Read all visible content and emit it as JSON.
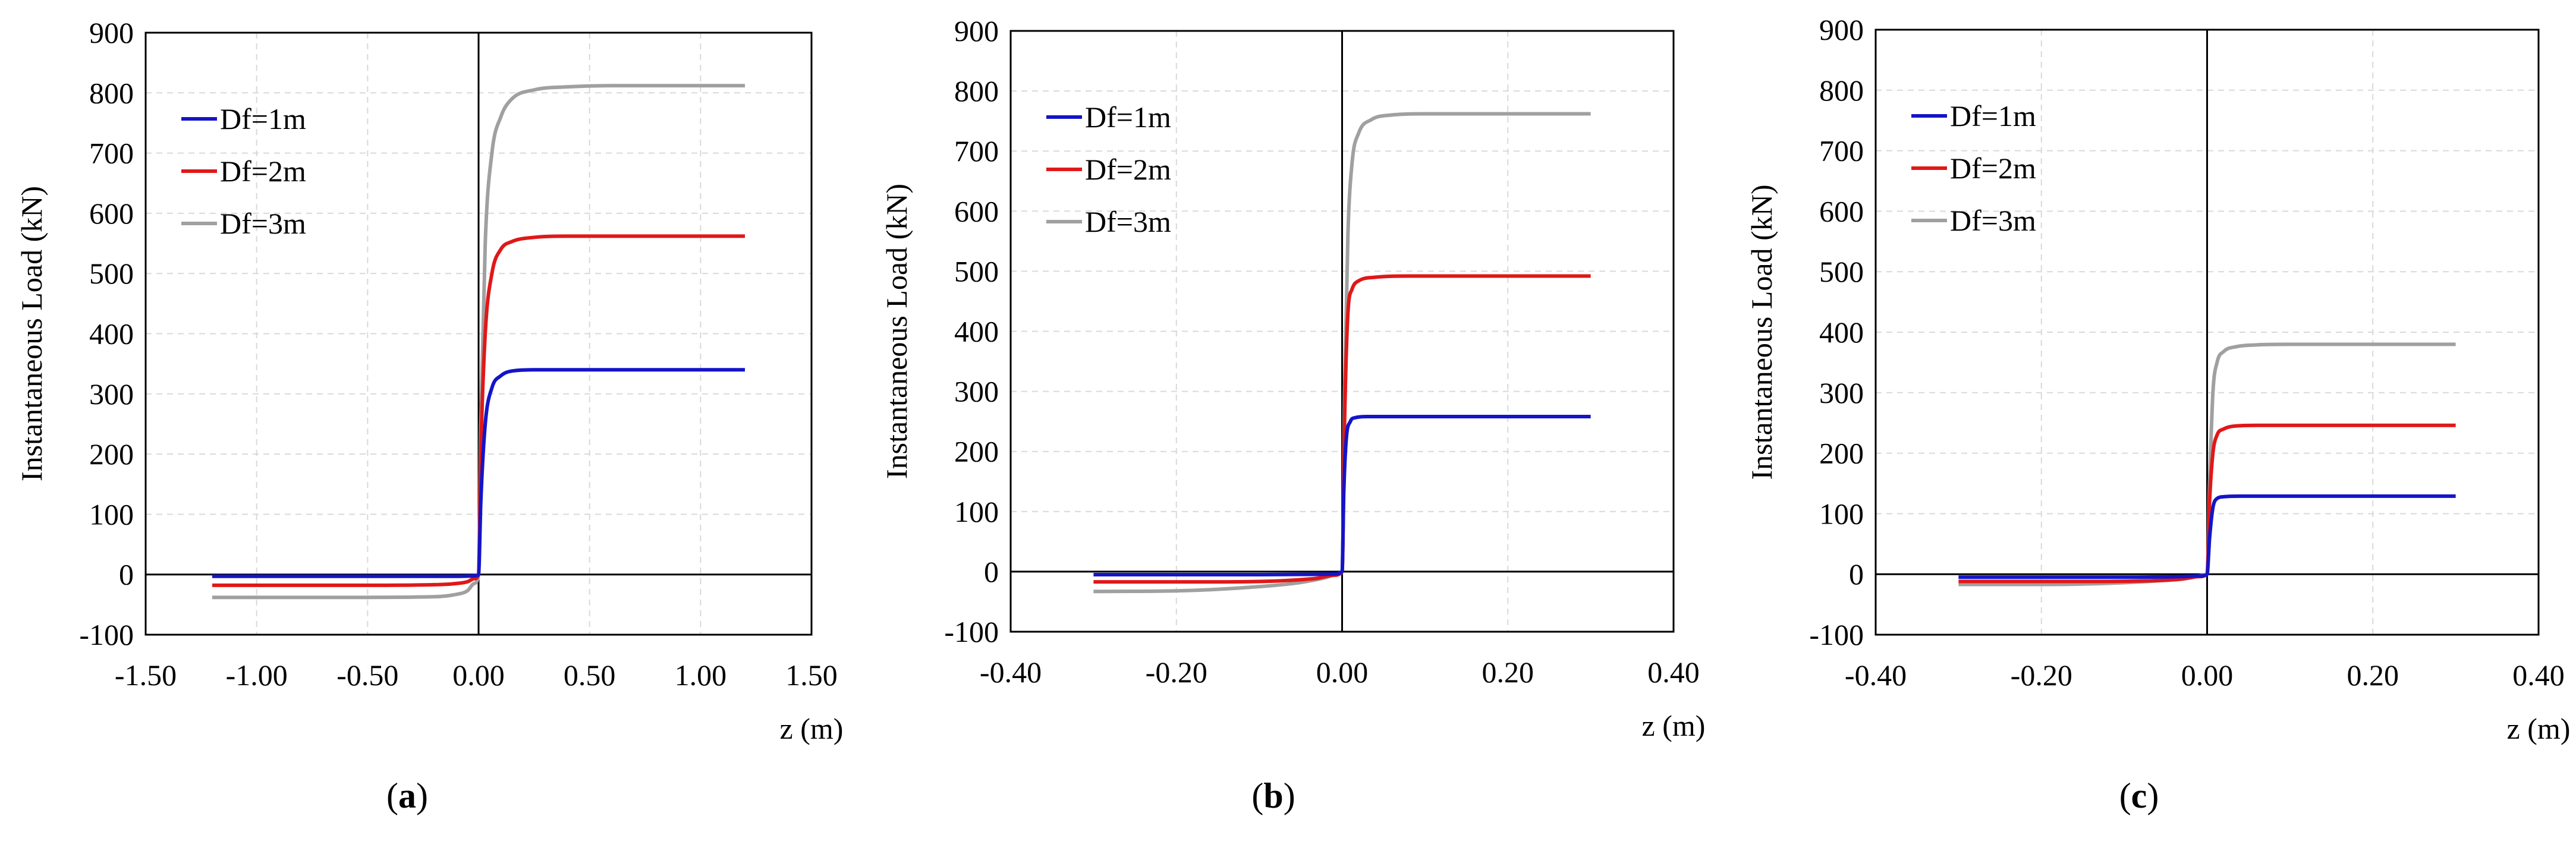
{
  "figure": {
    "panel_labels": [
      {
        "open": "(",
        "letter": "a",
        "close": ")"
      },
      {
        "open": "(",
        "letter": "b",
        "close": ")"
      },
      {
        "open": "(",
        "letter": "c",
        "close": ")"
      }
    ]
  },
  "colors": {
    "Df=1m": "#1414c8",
    "Df=2m": "#e01818",
    "Df=3m": "#a0a0a0"
  },
  "chart_data": [
    {
      "type": "line",
      "xlabel": "z (m)",
      "ylabel": "Instantaneous Load (kN)",
      "xlim": [
        -1.5,
        1.5
      ],
      "ylim": [
        -100,
        900
      ],
      "xticks": [
        "-1.50",
        "-1.00",
        "-0.50",
        "0.00",
        "0.50",
        "1.00",
        "1.50"
      ],
      "yticks": [
        "-100",
        "0",
        "100",
        "200",
        "300",
        "400",
        "500",
        "600",
        "700",
        "800",
        "900"
      ],
      "grid": true,
      "legend": "top-left",
      "series": [
        {
          "name": "Df=1m",
          "x": [
            -1.2,
            -0.5,
            -0.1,
            -0.03,
            -0.01,
            0,
            0.01,
            0.03,
            0.06,
            0.1,
            0.15,
            0.25,
            1.2
          ],
          "y": [
            -3,
            -3,
            -3,
            -2.5,
            -2,
            0,
            120,
            250,
            310,
            330,
            338,
            340,
            340
          ]
        },
        {
          "name": "Df=2m",
          "x": [
            -1.2,
            -0.5,
            -0.2,
            -0.1,
            -0.05,
            -0.02,
            0,
            0.01,
            0.03,
            0.06,
            0.1,
            0.15,
            0.25,
            0.4,
            1.2
          ],
          "y": [
            -18,
            -18,
            -17,
            -15,
            -12,
            -7,
            0,
            200,
            400,
            500,
            540,
            553,
            560,
            562,
            562
          ]
        },
        {
          "name": "Df=3m",
          "x": [
            -1.2,
            -0.5,
            -0.2,
            -0.1,
            -0.05,
            -0.02,
            0,
            0.01,
            0.03,
            0.06,
            0.1,
            0.15,
            0.25,
            0.4,
            0.6,
            1.2
          ],
          "y": [
            -38,
            -38,
            -37,
            -33,
            -27,
            -15,
            0,
            250,
            550,
            700,
            760,
            790,
            805,
            810,
            812,
            812
          ]
        }
      ]
    },
    {
      "type": "line",
      "xlabel": "z (m)",
      "ylabel": "Instantaneous Load (kN)",
      "xlim": [
        -0.4,
        0.4
      ],
      "ylim": [
        -100,
        900
      ],
      "xticks": [
        "-0.40",
        "-0.20",
        "0.00",
        "0.20",
        "0.40"
      ],
      "yticks": [
        "-100",
        "0",
        "100",
        "200",
        "300",
        "400",
        "500",
        "600",
        "700",
        "800",
        "900"
      ],
      "grid": true,
      "legend": "top-left",
      "series": [
        {
          "name": "Df=1m",
          "x": [
            -0.3,
            -0.1,
            -0.03,
            -0.01,
            0,
            0.002,
            0.005,
            0.01,
            0.015,
            0.03,
            0.3
          ],
          "y": [
            -5,
            -5,
            -4.5,
            -4,
            0,
            130,
            220,
            250,
            256,
            258,
            258
          ]
        },
        {
          "name": "Df=2m",
          "x": [
            -0.3,
            -0.15,
            -0.07,
            -0.03,
            -0.01,
            0,
            0.003,
            0.007,
            0.012,
            0.02,
            0.04,
            0.08,
            0.3
          ],
          "y": [
            -17,
            -17,
            -15,
            -11,
            -6,
            0,
            250,
            430,
            470,
            484,
            490,
            492,
            492
          ]
        },
        {
          "name": "Df=3m",
          "x": [
            -0.3,
            -0.2,
            -0.1,
            -0.05,
            -0.02,
            -0.005,
            0,
            0.003,
            0.007,
            0.012,
            0.02,
            0.035,
            0.06,
            0.1,
            0.3
          ],
          "y": [
            -33,
            -32,
            -25,
            -18,
            -10,
            -4,
            0,
            300,
            560,
            680,
            730,
            752,
            760,
            762,
            762
          ]
        }
      ]
    },
    {
      "type": "line",
      "xlabel": "z (m)",
      "ylabel": "Instantaneous Load (kN)",
      "xlim": [
        -0.4,
        0.4
      ],
      "ylim": [
        -100,
        900
      ],
      "xticks": [
        "-0.40",
        "-0.20",
        "0.00",
        "0.20",
        "0.40"
      ],
      "yticks": [
        "-100",
        "0",
        "100",
        "200",
        "300",
        "400",
        "500",
        "600",
        "700",
        "800",
        "900"
      ],
      "grid": true,
      "legend": "top-left",
      "series": [
        {
          "name": "Df=1m",
          "x": [
            -0.3,
            -0.1,
            -0.03,
            -0.01,
            0,
            0.003,
            0.007,
            0.012,
            0.02,
            0.04,
            0.3
          ],
          "y": [
            -5,
            -5,
            -4,
            -3,
            0,
            60,
            110,
            125,
            128,
            129,
            129
          ]
        },
        {
          "name": "Df=2m",
          "x": [
            -0.3,
            -0.15,
            -0.07,
            -0.03,
            -0.01,
            0,
            0.003,
            0.007,
            0.012,
            0.02,
            0.035,
            0.06,
            0.3
          ],
          "y": [
            -12,
            -12,
            -11,
            -8,
            -4,
            0,
            120,
            200,
            230,
            240,
            245,
            246,
            246
          ]
        },
        {
          "name": "Df=3m",
          "x": [
            -0.3,
            -0.2,
            -0.1,
            -0.05,
            -0.02,
            -0.005,
            0,
            0.003,
            0.007,
            0.012,
            0.02,
            0.035,
            0.06,
            0.1,
            0.3
          ],
          "y": [
            -17,
            -17,
            -14,
            -10,
            -6,
            -2,
            0,
            150,
            300,
            350,
            368,
            376,
            379,
            380,
            380
          ]
        }
      ]
    }
  ]
}
